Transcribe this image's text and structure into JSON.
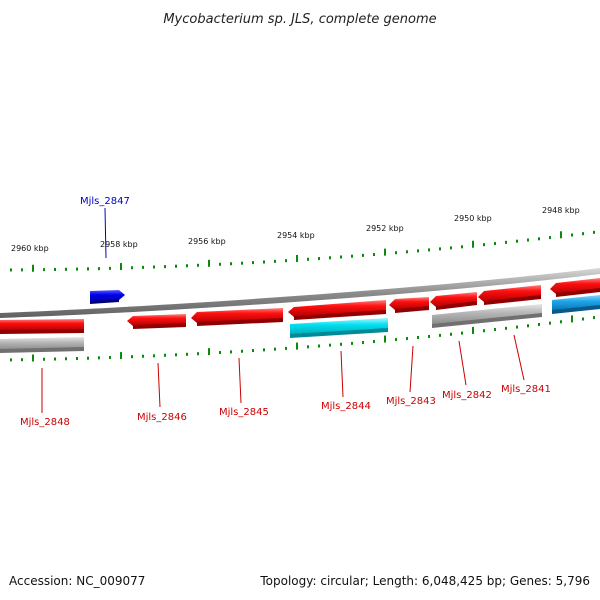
{
  "title": "Mycobacterium sp. JLS, complete genome",
  "footer": {
    "accession": "Accession: NC_009077",
    "summary": "Topology: circular; Length: 6,048,425 bp; Genes: 5,796"
  },
  "colors": {
    "forward_gene": "#0000dd",
    "reverse_gene": "#e00000",
    "cyan_feature": "#00d8e8",
    "light_blue_feature": "#22aaee",
    "grey_feature": "#b0b0b0",
    "backbone": "#909090",
    "ticks": "#0a8a0a"
  },
  "ruler": {
    "labels": [
      "2960 kbp",
      "2958 kbp",
      "2956 kbp",
      "2954 kbp",
      "2952 kbp",
      "2950 kbp",
      "2948 kbp"
    ]
  },
  "genes": [
    {
      "locus": "Mjls_2847",
      "strand": "+"
    },
    {
      "locus": "Mjls_2848",
      "strand": "-"
    },
    {
      "locus": "Mjls_2846",
      "strand": "-"
    },
    {
      "locus": "Mjls_2845",
      "strand": "-"
    },
    {
      "locus": "Mjls_2844",
      "strand": "-"
    },
    {
      "locus": "Mjls_2843",
      "strand": "-"
    },
    {
      "locus": "Mjls_2842",
      "strand": "-"
    },
    {
      "locus": "Mjls_2841",
      "strand": "-"
    }
  ]
}
